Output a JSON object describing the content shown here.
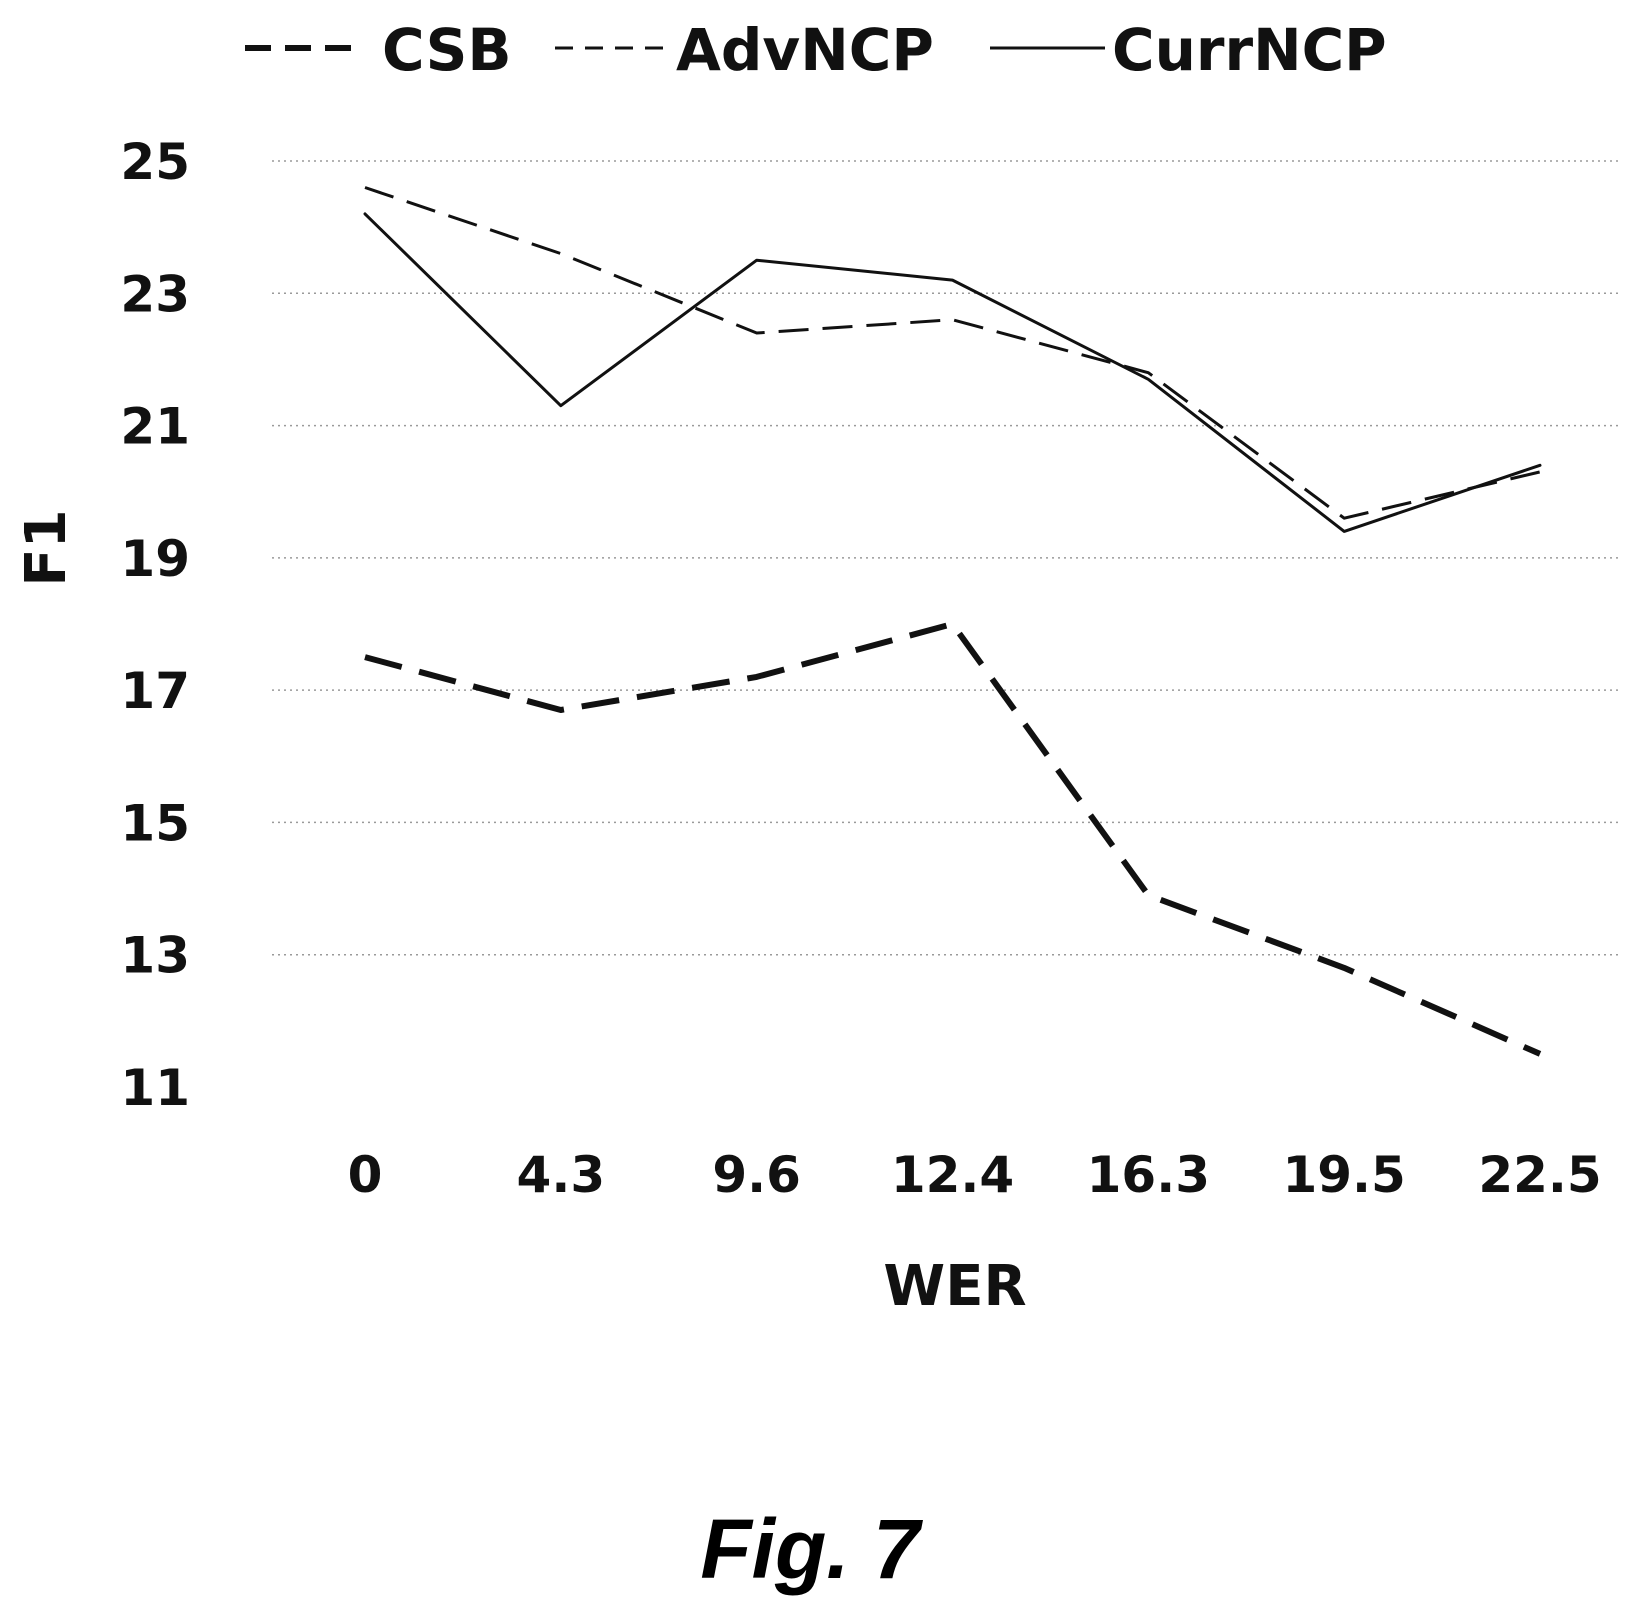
{
  "chart_data": {
    "type": "line",
    "xlabel": "WER",
    "ylabel": "F1",
    "categories": [
      "0",
      "4.3",
      "9.6",
      "12.4",
      "16.3",
      "19.5",
      "22.5"
    ],
    "ylim": [
      11,
      25
    ],
    "yticks": [
      "25",
      "23",
      "21",
      "19",
      "17",
      "15",
      "13",
      "11"
    ],
    "grid": "horizontal dotted",
    "legend": "top",
    "series": [
      {
        "name": "CSB",
        "style": "heavy dashed",
        "values": [
          17.5,
          16.7,
          17.2,
          18.0,
          13.9,
          12.8,
          11.5
        ]
      },
      {
        "name": "AdvNCP",
        "style": "thin dashed",
        "values": [
          24.6,
          23.6,
          22.4,
          22.6,
          21.8,
          19.6,
          20.3
        ]
      },
      {
        "name": "CurrNCP",
        "style": "solid",
        "values": [
          24.2,
          21.3,
          23.5,
          23.2,
          21.7,
          19.4,
          20.4
        ]
      }
    ],
    "line_color": "#111111"
  },
  "caption": "Fig. 7"
}
